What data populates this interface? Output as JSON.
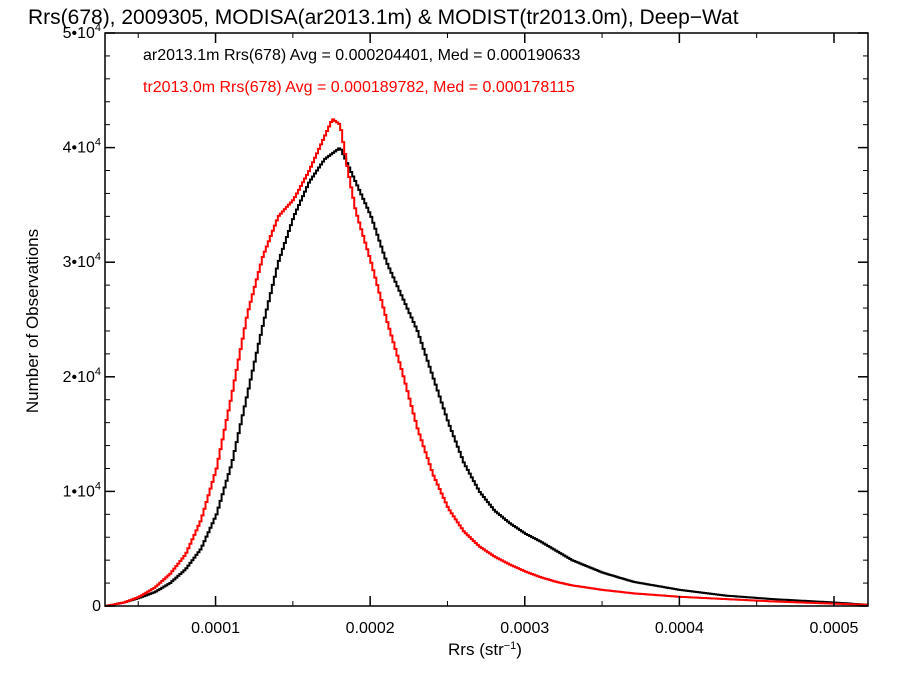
{
  "chart_data": {
    "type": "line",
    "title": "Rrs(678), 2009305, MODISA(ar2013.1m) & MODIST(tr2013.0m), Deep−Wat",
    "xlabel": "Rrs (str⁻¹)",
    "ylabel": "Number of Observations",
    "xlim": [
      2.85e-05,
      0.000522
    ],
    "ylim": [
      0,
      50000
    ],
    "x_ticks": [
      0.0001,
      0.0002,
      0.0003,
      0.0004,
      0.0005
    ],
    "x_tick_labels": [
      "0.0001",
      "0.0002",
      "0.0003",
      "0.0004",
      "0.0005"
    ],
    "y_ticks": [
      0,
      10000,
      20000,
      30000,
      40000,
      50000
    ],
    "y_tick_labels": [
      {
        "base": "0",
        "exp": ""
      },
      {
        "base": "1•10",
        "exp": "4"
      },
      {
        "base": "2•10",
        "exp": "4"
      },
      {
        "base": "3•10",
        "exp": "4"
      },
      {
        "base": "4•10",
        "exp": "4"
      },
      {
        "base": "5•10",
        "exp": "4"
      }
    ],
    "grid": false,
    "legend": "top-left",
    "annotations": [
      "ar2013.1m Rrs(678) Avg = 0.000204401, Med = 0.000190633",
      "tr2013.0m Rrs(678) Avg = 0.000189782, Med = 0.000178115"
    ],
    "series": [
      {
        "name": "ar2013.1m",
        "color": "#000000",
        "x": [
          2.85e-05,
          4e-05,
          5e-05,
          6e-05,
          7e-05,
          8e-05,
          9e-05,
          0.0001,
          0.00011,
          0.00012,
          0.00013,
          0.00014,
          0.00015,
          0.00016,
          0.00017,
          0.000175,
          0.00018,
          0.000185,
          0.00019,
          0.0002,
          0.00021,
          0.00022,
          0.00023,
          0.00024,
          0.00025,
          0.00026,
          0.00027,
          0.00028,
          0.00029,
          0.0003,
          0.00031,
          0.00032,
          0.00033,
          0.00035,
          0.00037,
          0.0004,
          0.00043,
          0.00046,
          0.0005,
          0.000522
        ],
        "y": [
          0,
          300,
          700,
          1200,
          2000,
          3200,
          5000,
          8000,
          12500,
          18500,
          24500,
          30000,
          34000,
          37000,
          39000,
          39500,
          40000,
          38500,
          37000,
          34000,
          30000,
          27000,
          24000,
          20000,
          16000,
          12500,
          10000,
          8300,
          7200,
          6300,
          5600,
          4800,
          4000,
          2900,
          2100,
          1400,
          900,
          600,
          300,
          100
        ]
      },
      {
        "name": "tr2013.0m",
        "color": "#ff0000",
        "x": [
          2.85e-05,
          4e-05,
          5e-05,
          6e-05,
          7e-05,
          8e-05,
          9e-05,
          0.0001,
          0.00011,
          0.00012,
          0.00013,
          0.00014,
          0.00015,
          0.00016,
          0.00017,
          0.000175,
          0.00018,
          0.000185,
          0.00019,
          0.0002,
          0.00021,
          0.00022,
          0.00023,
          0.00024,
          0.00025,
          0.00026,
          0.00027,
          0.00028,
          0.00029,
          0.0003,
          0.00031,
          0.00032,
          0.00033,
          0.00035,
          0.00037,
          0.0004,
          0.00043,
          0.00046,
          0.0005,
          0.000522
        ],
        "y": [
          0,
          300,
          800,
          1600,
          2800,
          4500,
          7500,
          12000,
          18500,
          25500,
          30500,
          34000,
          35500,
          38000,
          41000,
          42500,
          42000,
          38000,
          34500,
          30000,
          25000,
          20500,
          15500,
          11500,
          8500,
          6500,
          5200,
          4300,
          3600,
          3000,
          2500,
          2100,
          1800,
          1400,
          1100,
          800,
          600,
          400,
          200,
          100
        ]
      }
    ]
  }
}
